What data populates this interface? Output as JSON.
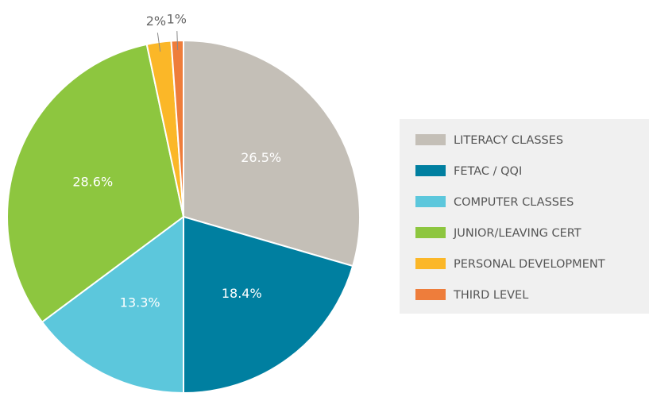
{
  "chart_data": {
    "type": "pie",
    "categories": [
      "LITERACY CLASSES",
      "FETAC / QQI",
      "COMPUTER CLASSES",
      "JUNIOR/LEAVING CERT",
      "PERSONAL DEVELOPMENT",
      "THIRD LEVEL"
    ],
    "values": [
      26.5,
      18.4,
      13.3,
      28.6,
      2,
      1
    ],
    "value_labels": [
      "26.5%",
      "18.4%",
      "13.3%",
      "28.6%",
      "2%",
      "1%"
    ],
    "colors": [
      "#c4bfb7",
      "#007fa0",
      "#5cc7dc",
      "#8dc63f",
      "#fbb728",
      "#ee7d3b"
    ],
    "legend": "right"
  }
}
